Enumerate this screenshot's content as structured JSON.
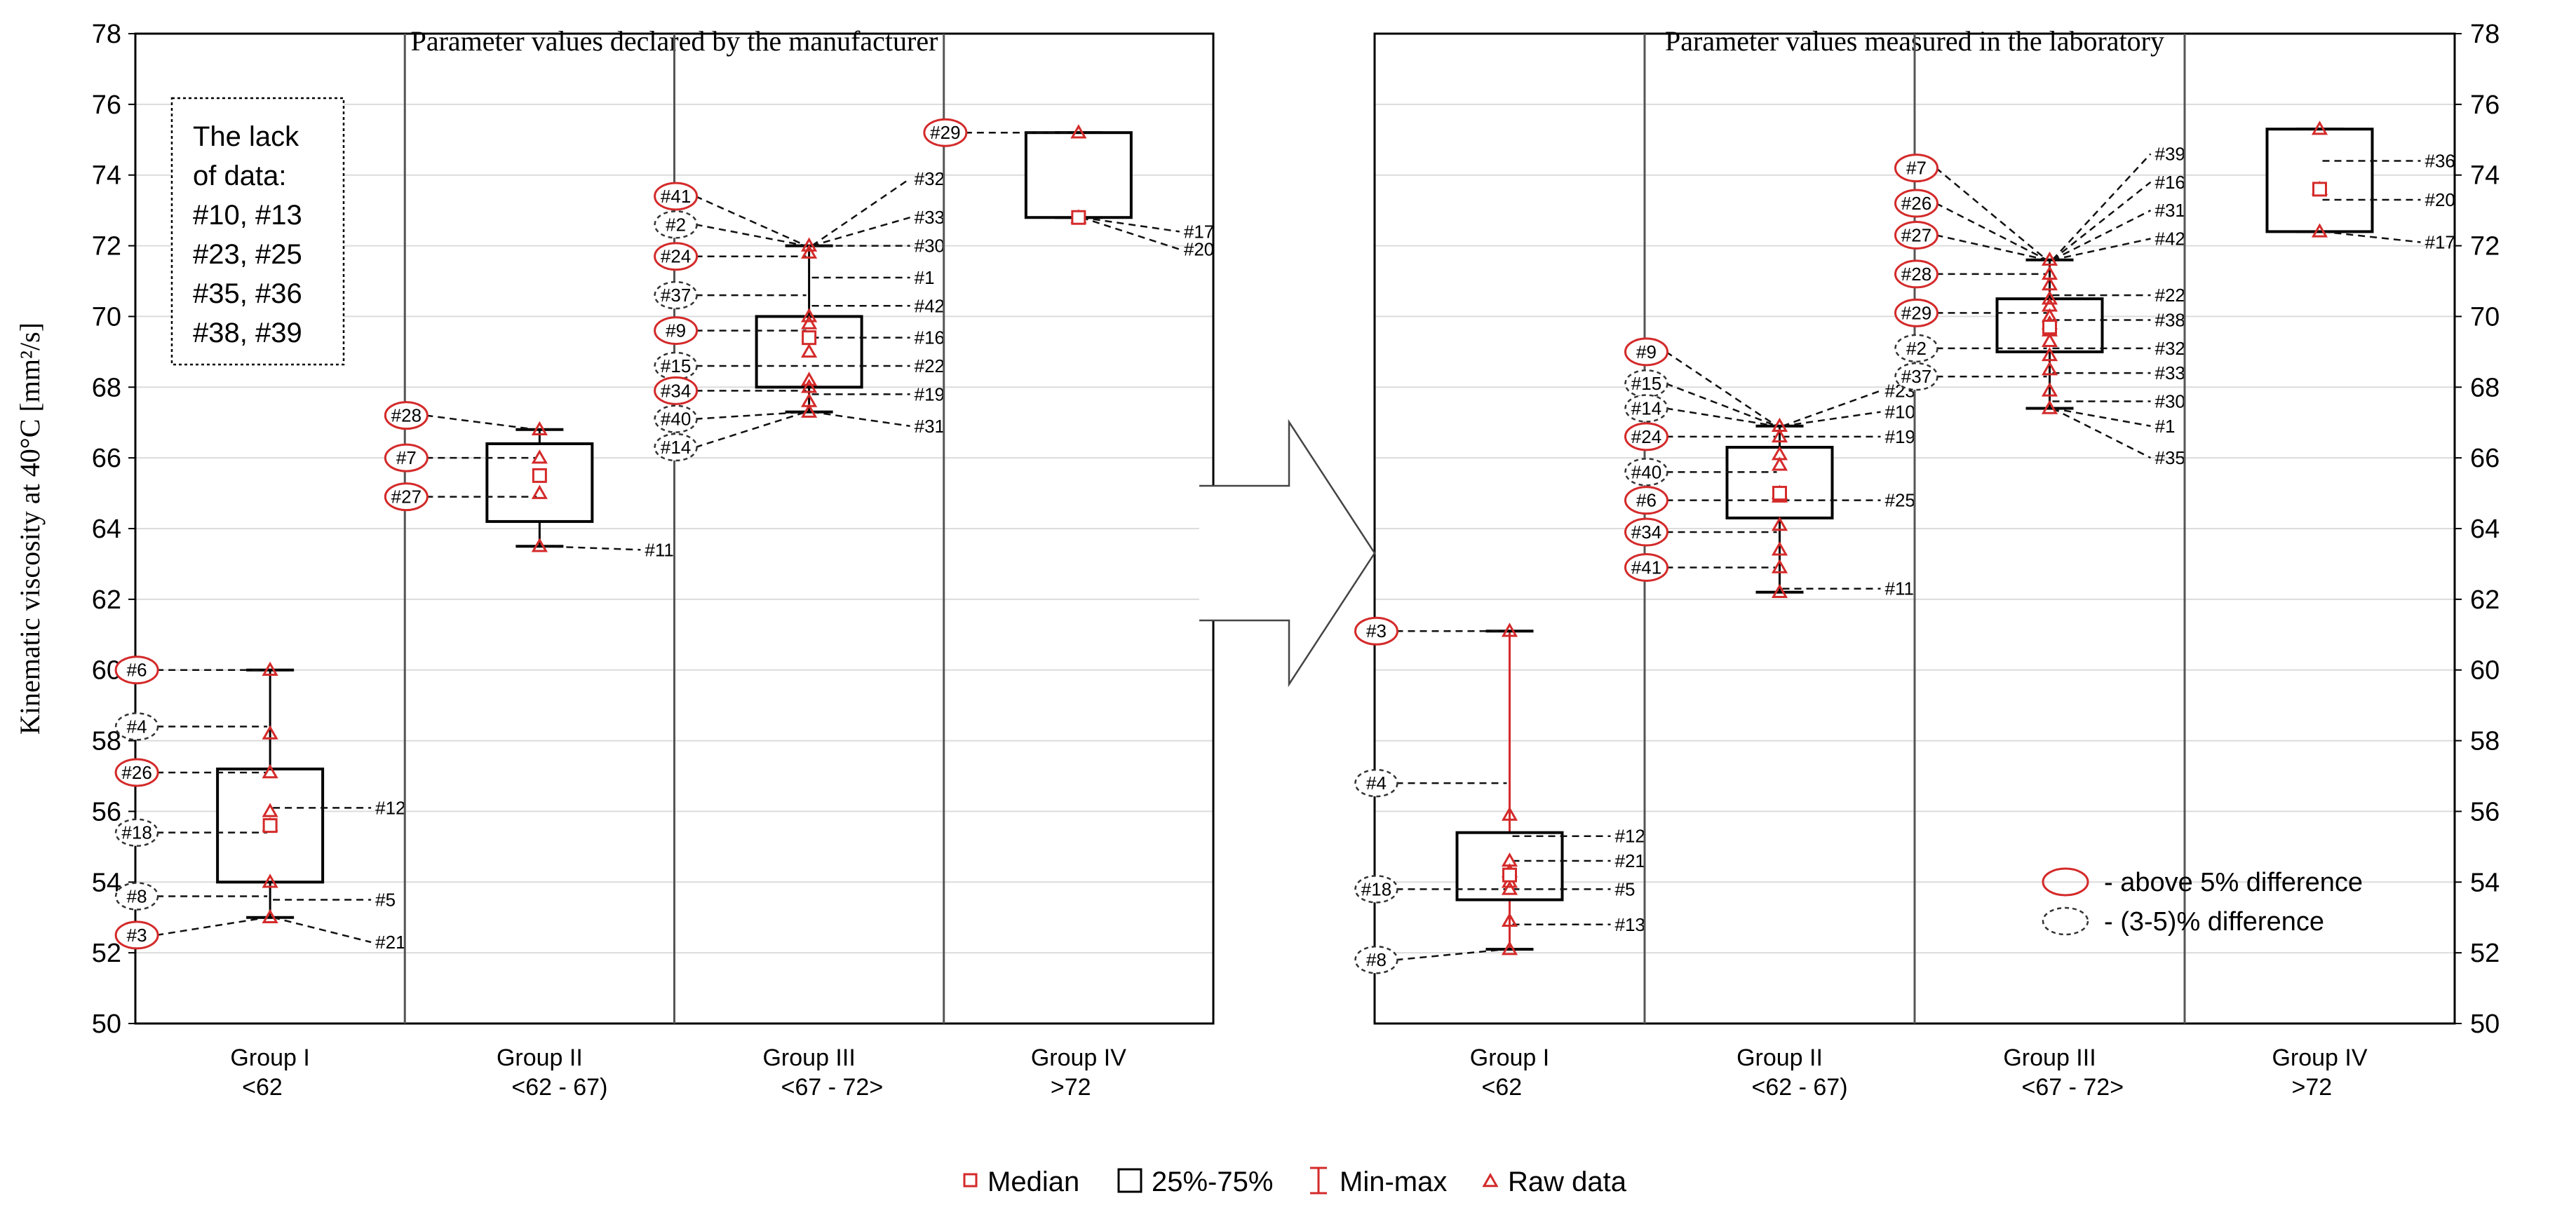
{
  "colors": {
    "red": "#d42a2a",
    "black": "#000000",
    "grid": "#dcdcdc",
    "dash": "#111111"
  },
  "chart_data": [
    {
      "type": "box",
      "title": "Parameter values declared by the manufacturer",
      "ylabel": "Kinematic viscosity at 40°C [mm²/s]",
      "ylim": [
        50,
        78
      ],
      "yticks": [
        "50",
        "52",
        "54",
        "56",
        "58",
        "60",
        "62",
        "64",
        "66",
        "68",
        "70",
        "72",
        "74",
        "76",
        "78"
      ],
      "groups": [
        {
          "name": "Group I",
          "range": "<62",
          "median": 55.6,
          "q1": 54.0,
          "q3": 57.2,
          "min": 53.0,
          "max": 60.0,
          "raw": [
            60.0,
            58.2,
            57.1,
            56.0,
            55.6,
            54.0,
            53.0
          ],
          "labels": [
            {
              "id": "#6",
              "value": 60.0,
              "side": "left",
              "mark": "red"
            },
            {
              "id": "#4",
              "value": 58.4,
              "side": "left",
              "mark": "gray"
            },
            {
              "id": "#26",
              "value": 57.1,
              "side": "left",
              "mark": "red"
            },
            {
              "id": "#18",
              "value": 55.4,
              "side": "left",
              "mark": "gray"
            },
            {
              "id": "#8",
              "value": 53.6,
              "side": "left",
              "mark": "gray"
            },
            {
              "id": "#3",
              "value": 52.5,
              "side": "left",
              "mark": "red"
            },
            {
              "id": "#12",
              "value": 56.1,
              "side": "right",
              "mark": "none"
            },
            {
              "id": "#5",
              "value": 53.5,
              "side": "right",
              "mark": "none"
            },
            {
              "id": "#21",
              "value": 52.3,
              "side": "right",
              "mark": "none"
            }
          ]
        },
        {
          "name": "Group II",
          "range": "<62 - 67)",
          "median": 65.5,
          "q1": 64.2,
          "q3": 66.4,
          "min": 63.5,
          "max": 66.8,
          "raw": [
            66.8,
            66.0,
            65.0,
            63.5
          ],
          "labels": [
            {
              "id": "#28",
              "value": 67.2,
              "side": "left",
              "mark": "red"
            },
            {
              "id": "#7",
              "value": 66.0,
              "side": "left",
              "mark": "red"
            },
            {
              "id": "#27",
              "value": 64.9,
              "side": "left",
              "mark": "red"
            },
            {
              "id": "#11",
              "value": 63.4,
              "side": "right",
              "mark": "none"
            }
          ]
        },
        {
          "name": "Group III",
          "range": "<67 - 72>",
          "median": 69.4,
          "q1": 68.0,
          "q3": 70.0,
          "min": 67.3,
          "max": 72.0,
          "raw": [
            72.0,
            71.8,
            70.0,
            69.8,
            69.0,
            68.2,
            68.0,
            67.6,
            67.3
          ],
          "labels": [
            {
              "id": "#41",
              "value": 73.4,
              "side": "left",
              "mark": "red"
            },
            {
              "id": "#2",
              "value": 72.6,
              "side": "left",
              "mark": "gray"
            },
            {
              "id": "#24",
              "value": 71.7,
              "side": "left",
              "mark": "red"
            },
            {
              "id": "#37",
              "value": 70.6,
              "side": "left",
              "mark": "gray"
            },
            {
              "id": "#9",
              "value": 69.6,
              "side": "left",
              "mark": "red"
            },
            {
              "id": "#15",
              "value": 68.6,
              "side": "left",
              "mark": "gray"
            },
            {
              "id": "#34",
              "value": 67.9,
              "side": "left",
              "mark": "red"
            },
            {
              "id": "#40",
              "value": 67.1,
              "side": "left",
              "mark": "gray"
            },
            {
              "id": "#14",
              "value": 66.3,
              "side": "left",
              "mark": "gray"
            },
            {
              "id": "#32",
              "value": 73.9,
              "side": "right",
              "mark": "none"
            },
            {
              "id": "#33",
              "value": 72.8,
              "side": "right",
              "mark": "none"
            },
            {
              "id": "#30",
              "value": 72.0,
              "side": "right",
              "mark": "none"
            },
            {
              "id": "#1",
              "value": 71.1,
              "side": "right",
              "mark": "none"
            },
            {
              "id": "#42",
              "value": 70.3,
              "side": "right",
              "mark": "none"
            },
            {
              "id": "#16",
              "value": 69.4,
              "side": "right",
              "mark": "none"
            },
            {
              "id": "#22",
              "value": 68.6,
              "side": "right",
              "mark": "none"
            },
            {
              "id": "#19",
              "value": 67.8,
              "side": "right",
              "mark": "none"
            },
            {
              "id": "#31",
              "value": 66.9,
              "side": "right",
              "mark": "none"
            }
          ]
        },
        {
          "name": "Group IV",
          "range": ">72",
          "median": 72.8,
          "q1": 72.8,
          "q3": 75.2,
          "min": 72.8,
          "max": 75.2,
          "raw": [
            75.2,
            72.8
          ],
          "labels": [
            {
              "id": "#29",
              "value": 75.2,
              "side": "left",
              "mark": "red"
            },
            {
              "id": "#17",
              "value": 72.4,
              "side": "right",
              "mark": "none"
            },
            {
              "id": "#20",
              "value": 71.9,
              "side": "right",
              "mark": "none"
            }
          ]
        }
      ],
      "note_lines": [
        "The lack",
        "of data:",
        "#10, #13",
        "#23, #25",
        "#35, #36",
        "#38, #39"
      ]
    },
    {
      "type": "box",
      "title": "Parameter values measured in the laboratory",
      "ylim": [
        50,
        78
      ],
      "yticks": [
        "50",
        "52",
        "54",
        "56",
        "58",
        "60",
        "62",
        "64",
        "66",
        "68",
        "70",
        "72",
        "74",
        "76",
        "78"
      ],
      "groups": [
        {
          "name": "Group I",
          "range": "<62",
          "median": 54.2,
          "q1": 53.5,
          "q3": 55.4,
          "min": 52.1,
          "max": 61.1,
          "raw": [
            61.1,
            55.9,
            54.6,
            54.3,
            54.0,
            53.8,
            52.9,
            52.1
          ],
          "labels": [
            {
              "id": "#3",
              "value": 61.1,
              "side": "left",
              "mark": "red"
            },
            {
              "id": "#4",
              "value": 56.8,
              "side": "left",
              "mark": "gray"
            },
            {
              "id": "#18",
              "value": 53.8,
              "side": "left",
              "mark": "gray"
            },
            {
              "id": "#8",
              "value": 51.8,
              "side": "left",
              "mark": "gray"
            },
            {
              "id": "#12",
              "value": 55.3,
              "side": "right",
              "mark": "none"
            },
            {
              "id": "#21",
              "value": 54.6,
              "side": "right",
              "mark": "none"
            },
            {
              "id": "#5",
              "value": 53.8,
              "side": "right",
              "mark": "none"
            },
            {
              "id": "#13",
              "value": 52.8,
              "side": "right",
              "mark": "none"
            }
          ]
        },
        {
          "name": "Group II",
          "range": "<62 - 67)",
          "median": 65.0,
          "q1": 64.3,
          "q3": 66.3,
          "min": 62.2,
          "max": 66.9,
          "raw": [
            66.9,
            66.6,
            66.1,
            65.8,
            65.0,
            64.9,
            64.1,
            63.4,
            62.9,
            62.2
          ],
          "labels": [
            {
              "id": "#9",
              "value": 69.0,
              "side": "left",
              "mark": "red"
            },
            {
              "id": "#15",
              "value": 68.1,
              "side": "left",
              "mark": "gray"
            },
            {
              "id": "#14",
              "value": 67.4,
              "side": "left",
              "mark": "gray"
            },
            {
              "id": "#24",
              "value": 66.6,
              "side": "left",
              "mark": "red"
            },
            {
              "id": "#40",
              "value": 65.6,
              "side": "left",
              "mark": "gray"
            },
            {
              "id": "#6",
              "value": 64.8,
              "side": "left",
              "mark": "red"
            },
            {
              "id": "#34",
              "value": 63.9,
              "side": "left",
              "mark": "red"
            },
            {
              "id": "#41",
              "value": 62.9,
              "side": "left",
              "mark": "red"
            },
            {
              "id": "#23",
              "value": 67.9,
              "side": "right",
              "mark": "none"
            },
            {
              "id": "#10",
              "value": 67.3,
              "side": "right",
              "mark": "none"
            },
            {
              "id": "#19",
              "value": 66.6,
              "side": "right",
              "mark": "none"
            },
            {
              "id": "#25",
              "value": 64.8,
              "side": "right",
              "mark": "none"
            },
            {
              "id": "#11",
              "value": 62.3,
              "side": "right",
              "mark": "none"
            }
          ]
        },
        {
          "name": "Group III",
          "range": "<67 - 72>",
          "median": 69.7,
          "q1": 69.0,
          "q3": 70.5,
          "min": 67.4,
          "max": 71.6,
          "raw": [
            71.6,
            71.2,
            70.9,
            70.5,
            70.3,
            70.0,
            69.8,
            69.6,
            69.3,
            68.9,
            68.5,
            67.9,
            67.4
          ],
          "labels": [
            {
              "id": "#7",
              "value": 74.2,
              "side": "left",
              "mark": "red"
            },
            {
              "id": "#26",
              "value": 73.2,
              "side": "left",
              "mark": "red"
            },
            {
              "id": "#27",
              "value": 72.3,
              "side": "left",
              "mark": "red"
            },
            {
              "id": "#28",
              "value": 71.2,
              "side": "left",
              "mark": "red"
            },
            {
              "id": "#29",
              "value": 70.1,
              "side": "left",
              "mark": "red"
            },
            {
              "id": "#2",
              "value": 69.1,
              "side": "left",
              "mark": "gray"
            },
            {
              "id": "#37",
              "value": 68.3,
              "side": "left",
              "mark": "gray"
            },
            {
              "id": "#39",
              "value": 74.6,
              "side": "right",
              "mark": "none"
            },
            {
              "id": "#16",
              "value": 73.8,
              "side": "right",
              "mark": "none"
            },
            {
              "id": "#31",
              "value": 73.0,
              "side": "right",
              "mark": "none"
            },
            {
              "id": "#42",
              "value": 72.2,
              "side": "right",
              "mark": "none"
            },
            {
              "id": "#22",
              "value": 70.6,
              "side": "right",
              "mark": "none"
            },
            {
              "id": "#38",
              "value": 69.9,
              "side": "right",
              "mark": "none"
            },
            {
              "id": "#32",
              "value": 69.1,
              "side": "right",
              "mark": "none"
            },
            {
              "id": "#33",
              "value": 68.4,
              "side": "right",
              "mark": "none"
            },
            {
              "id": "#30",
              "value": 67.6,
              "side": "right",
              "mark": "none"
            },
            {
              "id": "#1",
              "value": 66.9,
              "side": "right",
              "mark": "none"
            },
            {
              "id": "#35",
              "value": 66.0,
              "side": "right",
              "mark": "none"
            }
          ]
        },
        {
          "name": "Group IV",
          "range": ">72",
          "median": 73.6,
          "q1": 72.4,
          "q3": 75.3,
          "min": 72.4,
          "max": 75.3,
          "raw": [
            75.3,
            73.6,
            72.4
          ],
          "labels": [
            {
              "id": "#36",
              "value": 74.4,
              "side": "right",
              "mark": "none"
            },
            {
              "id": "#20",
              "value": 73.3,
              "side": "right",
              "mark": "none"
            },
            {
              "id": "#17",
              "value": 72.1,
              "side": "right",
              "mark": "none"
            }
          ]
        }
      ]
    }
  ],
  "difference_legend": {
    "above": "- above 5% difference",
    "mid": "- (3-5)% difference"
  },
  "legend": {
    "median": "Median",
    "box": "25%-75%",
    "minmax": "Min-max",
    "raw": "Raw data"
  }
}
